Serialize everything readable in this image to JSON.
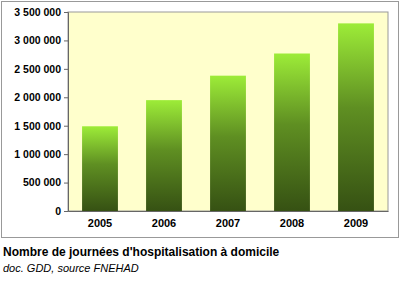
{
  "chart_data": {
    "type": "bar",
    "title": "Nombre de journées d'hospitalisation à domicile",
    "subtitle": "doc. GDD, source FNEHAD",
    "categories": [
      "2005",
      "2006",
      "2007",
      "2008",
      "2009"
    ],
    "values": [
      1490000,
      1950000,
      2380000,
      2770000,
      3300000
    ],
    "color": "#5f8f22",
    "ylim": [
      0,
      3500000
    ],
    "yticks": [
      0,
      {
        "value": 500000,
        "label": "500 000"
      },
      {
        "value": 1000000,
        "label": "1 000 000"
      },
      {
        "value": 1500000,
        "label": "1 500 000"
      },
      {
        "value": 2000000,
        "label": "2 000 000"
      },
      {
        "value": 2500000,
        "label": "2 500 000"
      },
      {
        "value": 3000000,
        "label": "3 000 000"
      },
      {
        "value": 3500000,
        "label": "3 500 000"
      }
    ],
    "grid": false
  }
}
